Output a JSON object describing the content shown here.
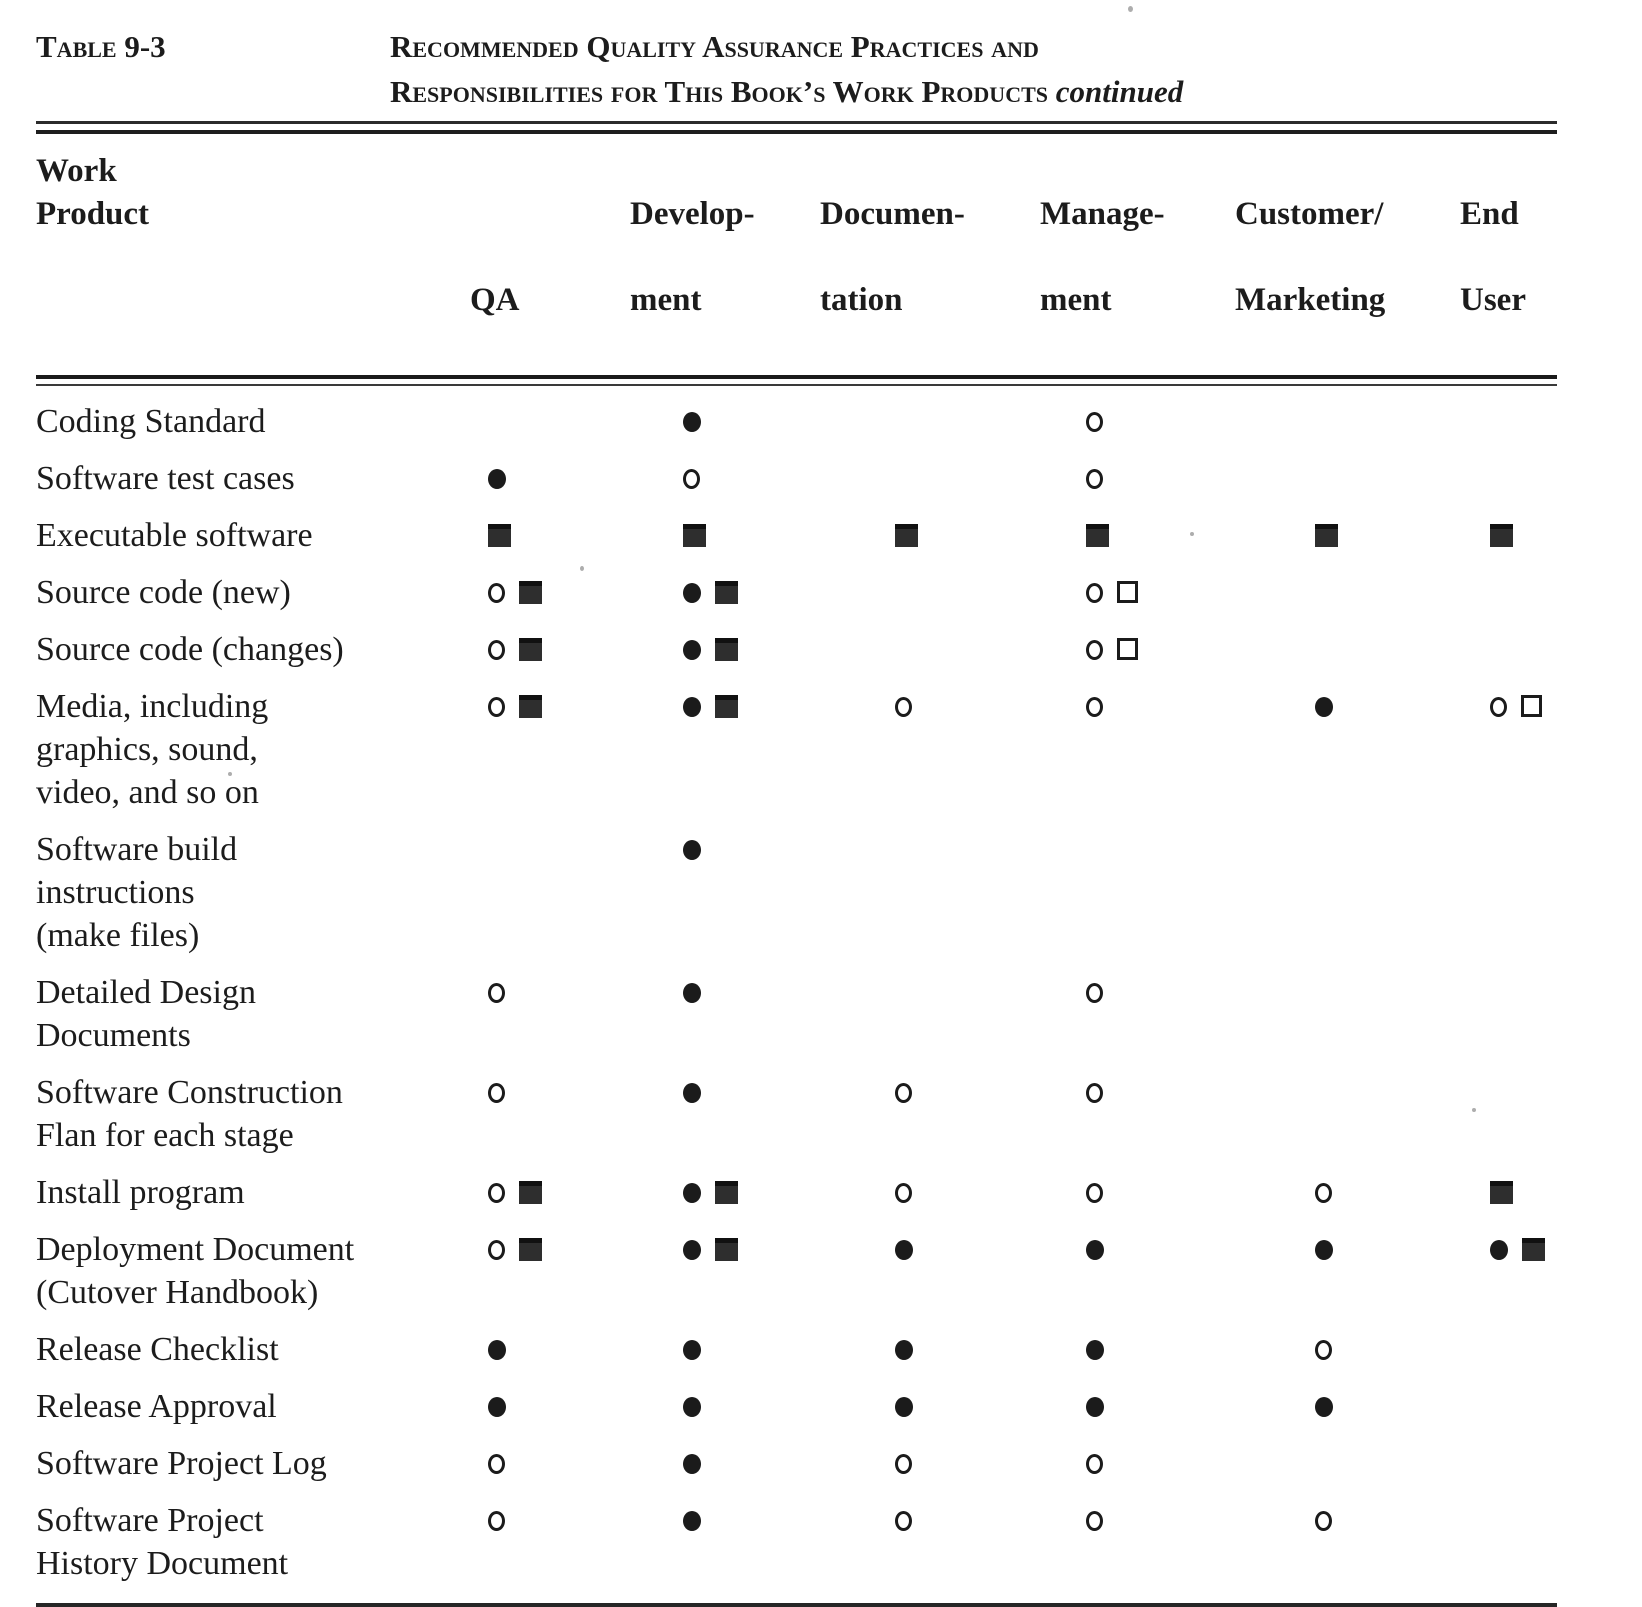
{
  "caption": {
    "tag": "Table 9-3",
    "title_line1": "Recommended Quality Assurance Practices and",
    "title_line2": "Responsibilities for This Book’s Work Products",
    "title_continued": "continued"
  },
  "table": {
    "header": {
      "work_product": "Work\nProduct",
      "columns": [
        {
          "key": "qa",
          "line1": "",
          "line2": "QA"
        },
        {
          "key": "development",
          "line1": "Develop-",
          "line2": "ment"
        },
        {
          "key": "documentation",
          "line1": "Documen-",
          "line2": "tation"
        },
        {
          "key": "management",
          "line1": "Manage-",
          "line2": "ment"
        },
        {
          "key": "customer-marketing",
          "line1": "Customer/",
          "line2": "Marketing"
        },
        {
          "key": "end-user",
          "line1": "End",
          "line2": "User"
        }
      ]
    },
    "rows": [
      {
        "label": "Coding Standard",
        "cells": [
          [],
          [
            "filled-circle"
          ],
          [],
          [
            "open-circle"
          ],
          [],
          []
        ]
      },
      {
        "label": "Software test cases",
        "cells": [
          [
            "filled-circle"
          ],
          [
            "open-circle"
          ],
          [],
          [
            "open-circle"
          ],
          [],
          []
        ]
      },
      {
        "label": "Executable software",
        "cells": [
          [
            "filled-square"
          ],
          [
            "filled-square"
          ],
          [
            "filled-square"
          ],
          [
            "filled-square"
          ],
          [
            "filled-square"
          ],
          [
            "filled-square"
          ]
        ]
      },
      {
        "label": "Source code (new)",
        "cells": [
          [
            "open-circle",
            "filled-square"
          ],
          [
            "filled-circle",
            "filled-square"
          ],
          [],
          [
            "open-circle",
            "open-square"
          ],
          [],
          []
        ]
      },
      {
        "label": "Source code (changes)",
        "cells": [
          [
            "open-circle",
            "filled-square"
          ],
          [
            "filled-circle",
            "filled-square"
          ],
          [],
          [
            "open-circle",
            "open-square"
          ],
          [],
          []
        ]
      },
      {
        "label": "Media, including\ngraphics, sound,\nvideo, and so on",
        "cells": [
          [
            "open-circle",
            "filled-square"
          ],
          [
            "filled-circle",
            "filled-square"
          ],
          [
            "open-circle"
          ],
          [
            "open-circle"
          ],
          [
            "filled-circle"
          ],
          [
            "open-circle",
            "open-square"
          ]
        ]
      },
      {
        "label": "Software  build\ninstructions\n(make files)",
        "cells": [
          [],
          [
            "filled-circle"
          ],
          [],
          [],
          [],
          []
        ]
      },
      {
        "label": "Detailed Design\nDocuments",
        "cells": [
          [
            "open-circle"
          ],
          [
            "filled-circle"
          ],
          [],
          [
            "open-circle"
          ],
          [],
          []
        ]
      },
      {
        "label": "Software  Construction\nFlan for each stage",
        "cells": [
          [
            "open-circle"
          ],
          [
            "filled-circle"
          ],
          [
            "open-circle"
          ],
          [
            "open-circle"
          ],
          [],
          []
        ]
      },
      {
        "label": "Install program",
        "cells": [
          [
            "open-circle",
            "filled-square"
          ],
          [
            "filled-circle",
            "filled-square"
          ],
          [
            "open-circle"
          ],
          [
            "open-circle"
          ],
          [
            "open-circle"
          ],
          [
            "filled-square"
          ]
        ]
      },
      {
        "label": "Deployment Document\n(Cutover  Handbook)",
        "cells": [
          [
            "open-circle",
            "filled-square"
          ],
          [
            "filled-circle",
            "filled-square"
          ],
          [
            "filled-circle"
          ],
          [
            "filled-circle"
          ],
          [
            "filled-circle"
          ],
          [
            "filled-circle",
            "filled-square"
          ]
        ]
      },
      {
        "label": "Release  Checklist",
        "cells": [
          [
            "filled-circle"
          ],
          [
            "filled-circle"
          ],
          [
            "filled-circle"
          ],
          [
            "filled-circle"
          ],
          [
            "open-circle"
          ],
          []
        ]
      },
      {
        "label": "Release  Approval",
        "cells": [
          [
            "filled-circle"
          ],
          [
            "filled-circle"
          ],
          [
            "filled-circle"
          ],
          [
            "filled-circle"
          ],
          [
            "filled-circle"
          ],
          []
        ]
      },
      {
        "label": "Software Project Log",
        "cells": [
          [
            "open-circle"
          ],
          [
            "filled-circle"
          ],
          [
            "open-circle"
          ],
          [
            "open-circle"
          ],
          [],
          []
        ]
      },
      {
        "label": "Software Project\nHistory Document",
        "cells": [
          [
            "open-circle"
          ],
          [
            "filled-circle"
          ],
          [
            "open-circle"
          ],
          [
            "open-circle"
          ],
          [
            "open-circle"
          ],
          []
        ]
      }
    ]
  },
  "colors": {
    "ink": "#1c1c1c",
    "paper": "#ffffff"
  }
}
